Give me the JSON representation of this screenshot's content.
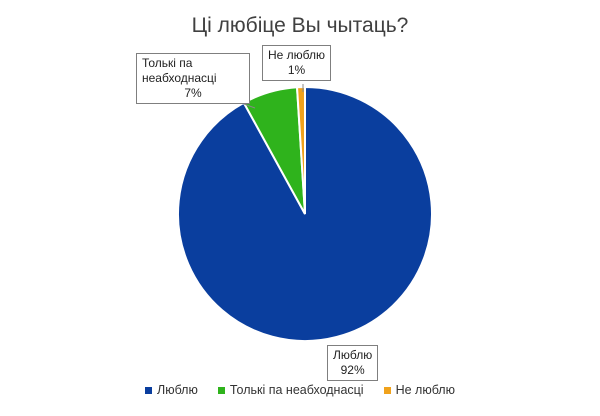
{
  "chart_data": {
    "type": "pie",
    "title": "Ці любіце Вы чытаць?",
    "slices": [
      {
        "label": "Люблю",
        "value": 92,
        "value_label": "92%",
        "color": "#0a3e9e"
      },
      {
        "label": "Толькі па неабходнасці",
        "value": 7,
        "value_label": "7%",
        "color": "#2fb31c"
      },
      {
        "label": "Не люблю",
        "value": 1,
        "value_label": "1%",
        "color": "#f0a21c"
      }
    ],
    "legend": {
      "position": "bottom"
    }
  }
}
